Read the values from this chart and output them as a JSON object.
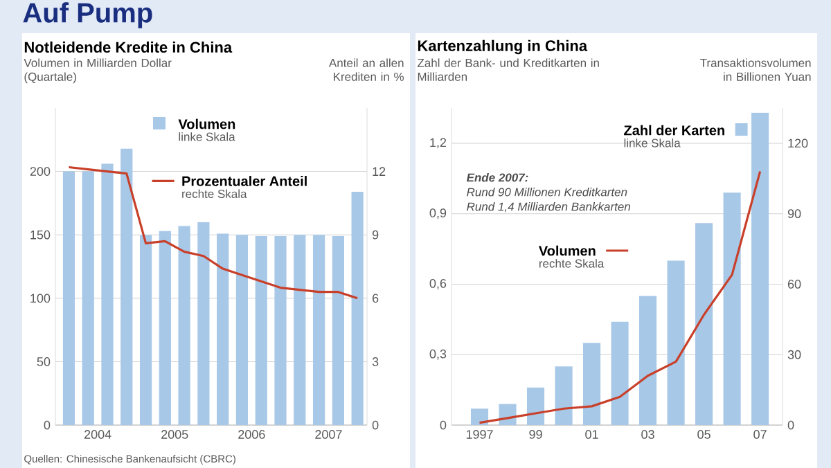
{
  "chart_data": [
    {
      "type": "bar",
      "title": "Auf Pump",
      "subtitle": "Notleidende Kredite in China",
      "ylabel": "Volumen in Milliarden Dollar (Quartale)",
      "y2label": "Anteil an allen Krediten in %",
      "x": [
        2004.125,
        2004.375,
        2004.625,
        2004.875,
        2005.125,
        2005.375,
        2005.625,
        2005.875,
        2006.125,
        2006.375,
        2006.625,
        2006.875,
        2007.125,
        2007.375,
        2007.625,
        2007.875
      ],
      "xlim": [
        2003.95,
        2008
      ],
      "xticks": [
        {
          "value": 2004.5,
          "label": "2004"
        },
        {
          "value": 2005.5,
          "label": "2005"
        },
        {
          "value": 2006.5,
          "label": "2006"
        },
        {
          "value": 2007.5,
          "label": "2007"
        }
      ],
      "ylim": [
        0,
        250
      ],
      "yticks": [
        0,
        50,
        100,
        150,
        200
      ],
      "y2lim": [
        0,
        15
      ],
      "y2ticks": [
        0,
        3,
        6,
        9,
        12
      ],
      "grid": "y",
      "legend": "top",
      "series": [
        {
          "name": "Volumen",
          "color": "#a8c8e8",
          "values": [
            200,
            200,
            206,
            218,
            150,
            153,
            157,
            160,
            151,
            150,
            149,
            149,
            150,
            150,
            149,
            184
          ]
        },
        {
          "name": "Prozentualer Anteil",
          "type": "line",
          "axis": "y2",
          "color": "#c8402a",
          "values": [
            12.2,
            12.1,
            12.0,
            11.9,
            8.6,
            8.7,
            8.2,
            8.0,
            7.4,
            7.1,
            6.8,
            6.5,
            6.4,
            6.3,
            6.3,
            6.0
          ]
        }
      ],
      "annotations": [
        "linke Skala",
        "rechte Skala",
        "Quellen: Chinesische Bankenaufsicht (CBRC)"
      ]
    },
    {
      "type": "bar",
      "title": "Kartenzahlung in China",
      "ylabel": "Zahl der Bank- und Kreditkarten in Milliarden",
      "y2label": "Transaktionsvolumen in Billionen Yuan",
      "x": [
        1997,
        1998,
        1999,
        2000,
        2001,
        2002,
        2003,
        2004,
        2005,
        2006,
        2007
      ],
      "xlim": [
        1996,
        2007.8
      ],
      "xticks": [
        1997,
        {
          "value": 1999,
          "label": "99"
        },
        {
          "value": 2001,
          "label": "01"
        },
        {
          "value": 2003,
          "label": "03"
        },
        {
          "value": 2005,
          "label": "05"
        },
        {
          "value": 2007,
          "label": "07"
        }
      ],
      "ylim": [
        0,
        1.35
      ],
      "yticks": [
        0,
        {
          "value": 0.3,
          "label": "0,3"
        },
        {
          "value": 0.6,
          "label": "0,6"
        },
        {
          "value": 0.9,
          "label": "0,9"
        },
        {
          "value": 1.2,
          "label": "1,2"
        }
      ],
      "y2lim": [
        0,
        135
      ],
      "y2ticks": [
        0,
        30,
        60,
        90,
        120
      ],
      "grid": "y",
      "legend": "top right",
      "series": [
        {
          "name": "Zahl der Karten",
          "color": "#a8c8e8",
          "values": [
            0.07,
            0.09,
            0.16,
            0.25,
            0.35,
            0.44,
            0.55,
            0.7,
            0.86,
            0.99,
            1.33
          ]
        },
        {
          "name": "Volumen",
          "type": "line",
          "axis": "y2",
          "color": "#c8402a",
          "values": [
            1,
            3,
            5,
            7,
            8,
            12,
            21,
            27,
            47,
            64,
            108
          ]
        }
      ],
      "annotations": [
        "linke Skala",
        "rechte Skala",
        "Ende 2007:",
        "Rund 90 Millionen Kreditkarten",
        "Rund 1,4 Milliarden Bankkarten"
      ]
    }
  ]
}
